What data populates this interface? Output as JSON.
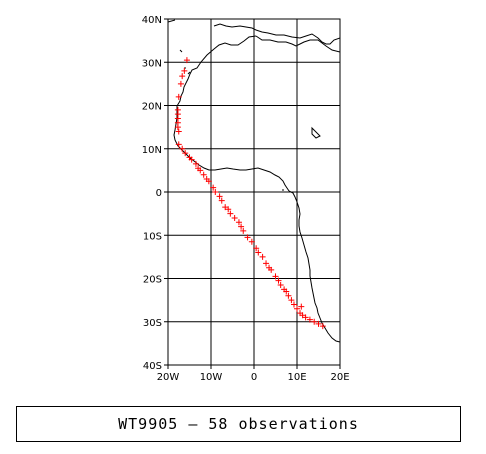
{
  "map": {
    "lon_range": [
      -20,
      20
    ],
    "lat_range": [
      -40,
      40
    ],
    "grid": true,
    "x_tick_labels": [
      "20W",
      "10W",
      "0",
      "10E",
      "20E"
    ],
    "x_tick_values": [
      -20,
      -10,
      0,
      10,
      20
    ],
    "y_tick_labels": [
      "40N",
      "30N",
      "20N",
      "10N",
      "0",
      "10S",
      "20S",
      "30S",
      "40S"
    ],
    "y_tick_values": [
      40,
      30,
      20,
      10,
      0,
      -10,
      -20,
      -30,
      -40
    ],
    "marker_color": "#ff0000",
    "coast_color": "#000000",
    "marker": "plus"
  },
  "chart_data": {
    "type": "scatter",
    "points": [
      [
        -15.6,
        30.5
      ],
      [
        -16.2,
        28.0
      ],
      [
        -16.7,
        26.8
      ],
      [
        -17.0,
        25.0
      ],
      [
        -17.5,
        22.0
      ],
      [
        -17.7,
        19.0
      ],
      [
        -17.7,
        18.0
      ],
      [
        -17.7,
        17.0
      ],
      [
        -17.7,
        16.0
      ],
      [
        -17.7,
        15.0
      ],
      [
        -17.5,
        14.0
      ],
      [
        -17.5,
        11.0
      ],
      [
        -16.7,
        10.0
      ],
      [
        -16.0,
        9.0
      ],
      [
        -15.0,
        8.0
      ],
      [
        -14.5,
        7.5
      ],
      [
        -13.5,
        6.5
      ],
      [
        -13.0,
        5.5
      ],
      [
        -12.5,
        5.0
      ],
      [
        -11.7,
        4.0
      ],
      [
        -11.0,
        3.0
      ],
      [
        -10.5,
        2.5
      ],
      [
        -9.5,
        1.0
      ],
      [
        -9.0,
        0.0
      ],
      [
        -8.0,
        -1.0
      ],
      [
        -7.5,
        -2.0
      ],
      [
        -6.7,
        -3.5
      ],
      [
        -6.0,
        -4.0
      ],
      [
        -5.5,
        -5.0
      ],
      [
        -4.5,
        -6.0
      ],
      [
        -3.5,
        -7.0
      ],
      [
        -3.0,
        -8.0
      ],
      [
        -2.5,
        -9.0
      ],
      [
        -1.5,
        -10.5
      ],
      [
        -0.5,
        -11.5
      ],
      [
        0.5,
        -13.0
      ],
      [
        1.0,
        -14.0
      ],
      [
        2.0,
        -15.0
      ],
      [
        2.8,
        -16.5
      ],
      [
        3.5,
        -17.5
      ],
      [
        4.0,
        -18.0
      ],
      [
        5.0,
        -19.5
      ],
      [
        5.7,
        -20.5
      ],
      [
        6.2,
        -21.5
      ],
      [
        7.0,
        -22.5
      ],
      [
        7.5,
        -23.0
      ],
      [
        8.0,
        -24.0
      ],
      [
        8.7,
        -25.0
      ],
      [
        9.3,
        -26.0
      ],
      [
        10.0,
        -27.0
      ],
      [
        10.7,
        -28.0
      ],
      [
        11.3,
        -28.5
      ],
      [
        12.0,
        -29.0
      ],
      [
        13.0,
        -29.5
      ],
      [
        14.0,
        -30.0
      ],
      [
        15.0,
        -30.5
      ],
      [
        16.0,
        -31.0
      ],
      [
        11.0,
        -26.5
      ]
    ]
  },
  "caption": "WT9905 – 58 observations"
}
